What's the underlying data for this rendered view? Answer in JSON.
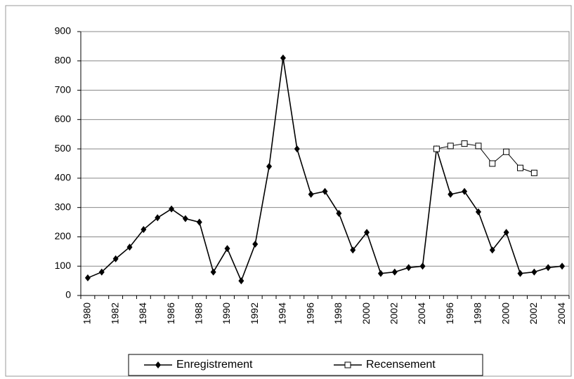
{
  "chart_data": {
    "type": "line",
    "categories": [
      "1980",
      null,
      "1982",
      null,
      "1984",
      null,
      "1986",
      null,
      "1988",
      null,
      "1990",
      null,
      "1992",
      null,
      "1994",
      null,
      "1996",
      null,
      "1998",
      null,
      "2000",
      null,
      "2002",
      null,
      "2004",
      null,
      "1996",
      null,
      "1998",
      null,
      "2000",
      null,
      "2002",
      null,
      "2004"
    ],
    "series": [
      {
        "name": "Enregistrement",
        "color": "#000000",
        "marker": "diamond",
        "values": [
          60,
          80,
          125,
          165,
          225,
          265,
          295,
          262,
          250,
          80,
          160,
          50,
          175,
          440,
          810,
          500,
          345,
          355,
          280,
          155,
          215,
          75,
          80,
          95,
          100,
          500,
          345,
          355,
          285,
          155,
          215,
          75,
          80,
          95,
          100
        ]
      },
      {
        "name": "Recensement",
        "color": "#000000",
        "marker": "square",
        "values": [
          null,
          null,
          null,
          null,
          null,
          null,
          null,
          null,
          null,
          null,
          null,
          null,
          null,
          null,
          null,
          null,
          null,
          null,
          null,
          null,
          null,
          null,
          null,
          null,
          null,
          500,
          510,
          518,
          510,
          450,
          490,
          435,
          418,
          null,
          null
        ]
      }
    ],
    "ylim": [
      0,
      900
    ],
    "yticks": [
      0,
      100,
      200,
      300,
      400,
      500,
      600,
      700,
      800,
      900
    ],
    "grid": true,
    "legend": "bottom"
  }
}
